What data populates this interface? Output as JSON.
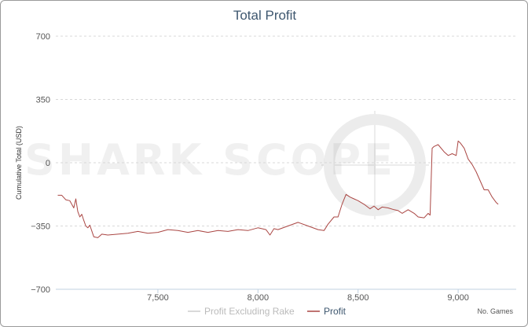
{
  "chart_data": {
    "type": "line",
    "title": "Total Profit",
    "ylabel": "Cumulative Total (USD)",
    "xlabel": "No. Games",
    "xlim": [
      6990,
      9290
    ],
    "ylim": [
      -700,
      700
    ],
    "y_ticks": [
      -700,
      -350,
      0,
      350,
      700
    ],
    "y_tick_labels": [
      "−700",
      "−350",
      "0",
      "350",
      "700"
    ],
    "x_ticks": [
      7500,
      8000,
      8500,
      9000
    ],
    "x_tick_labels": [
      "7,500",
      "8,000",
      "8,500",
      "9,000"
    ],
    "grid": "horizontal dashed",
    "legend": "bottom-center",
    "series": [
      {
        "name": "Profit Excluding Rake",
        "color": "#cccccc",
        "x": [],
        "y": []
      },
      {
        "name": "Profit",
        "color": "#aa4643",
        "x": [
          7000,
          7020,
          7040,
          7060,
          7080,
          7090,
          7100,
          7110,
          7120,
          7130,
          7140,
          7150,
          7160,
          7180,
          7200,
          7220,
          7250,
          7300,
          7350,
          7400,
          7450,
          7500,
          7550,
          7600,
          7650,
          7700,
          7750,
          7800,
          7850,
          7900,
          7950,
          8000,
          8040,
          8060,
          8080,
          8100,
          8150,
          8200,
          8250,
          8300,
          8330,
          8350,
          8380,
          8400,
          8420,
          8440,
          8460,
          8480,
          8500,
          8530,
          8560,
          8580,
          8600,
          8620,
          8650,
          8680,
          8700,
          8720,
          8750,
          8780,
          8800,
          8830,
          8850,
          8860,
          8870,
          8880,
          8900,
          8930,
          8950,
          8970,
          8990,
          9000,
          9010,
          9030,
          9050,
          9070,
          9090,
          9110,
          9130,
          9150,
          9170,
          9190,
          9200
        ],
        "y": [
          -180,
          -180,
          -205,
          -210,
          -250,
          -200,
          -270,
          -300,
          -285,
          -320,
          -350,
          -360,
          -345,
          -410,
          -415,
          -395,
          -400,
          -395,
          -390,
          -380,
          -390,
          -385,
          -370,
          -375,
          -385,
          -375,
          -385,
          -375,
          -380,
          -370,
          -375,
          -360,
          -370,
          -400,
          -365,
          -370,
          -350,
          -330,
          -350,
          -370,
          -375,
          -340,
          -300,
          -300,
          -230,
          -175,
          -190,
          -200,
          -210,
          -230,
          -255,
          -240,
          -260,
          -245,
          -250,
          -260,
          -265,
          -280,
          -260,
          -280,
          -300,
          -305,
          -280,
          -290,
          80,
          90,
          100,
          60,
          40,
          50,
          40,
          120,
          110,
          80,
          20,
          -10,
          -50,
          -100,
          -150,
          -150,
          -190,
          -220,
          -230
        ]
      }
    ]
  },
  "watermark": "SHARK SCOPE"
}
